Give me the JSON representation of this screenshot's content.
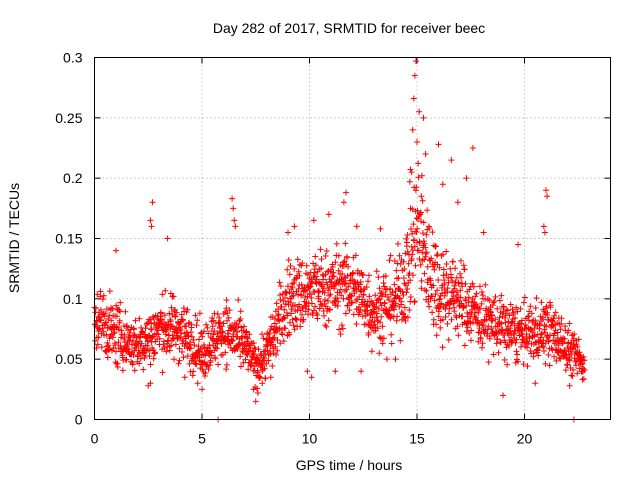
{
  "chart_data": {
    "type": "scatter",
    "title": "Day 282 of 2017, SRMTID for receiver beec",
    "xlabel": "GPS time / hours",
    "ylabel": "SRMTID / TECUs",
    "xlim": [
      0,
      24
    ],
    "ylim": [
      0,
      0.3
    ],
    "xticks": [
      0,
      5,
      10,
      15,
      20
    ],
    "xtick_labels": [
      "0",
      "5",
      "10",
      "15",
      "20"
    ],
    "yticks": [
      0,
      0.05,
      0.1,
      0.15,
      0.2,
      0.25,
      0.3
    ],
    "ytick_labels": [
      "0",
      "0.05",
      "0.1",
      "0.15",
      "0.2",
      "0.25",
      "0.3"
    ],
    "grid": true,
    "marker": "+",
    "color": "#ff0000",
    "series": [
      {
        "name": "SRMTID",
        "envelope_x": [
          0,
          1,
          2,
          3,
          4,
          5,
          6,
          7,
          7.5,
          8,
          9,
          10,
          11,
          12,
          13,
          14,
          14.5,
          15,
          15.5,
          16,
          17,
          18,
          19,
          20,
          21,
          22,
          22.8
        ],
        "envelope_y": [
          0.085,
          0.07,
          0.06,
          0.075,
          0.075,
          0.055,
          0.075,
          0.06,
          0.045,
          0.055,
          0.1,
          0.105,
          0.11,
          0.11,
          0.09,
          0.1,
          0.12,
          0.16,
          0.13,
          0.11,
          0.1,
          0.085,
          0.075,
          0.07,
          0.075,
          0.06,
          0.045
        ],
        "spread_y": [
          0.025,
          0.025,
          0.02,
          0.025,
          0.025,
          0.02,
          0.025,
          0.02,
          0.015,
          0.02,
          0.03,
          0.03,
          0.03,
          0.03,
          0.03,
          0.03,
          0.04,
          0.06,
          0.045,
          0.04,
          0.03,
          0.025,
          0.025,
          0.022,
          0.025,
          0.02,
          0.012
        ],
        "points": [
          [
            14.95,
            0.297
          ],
          [
            14.9,
            0.285
          ],
          [
            14.85,
            0.266
          ],
          [
            15.1,
            0.255
          ],
          [
            15.3,
            0.25
          ],
          [
            14.8,
            0.24
          ],
          [
            15.0,
            0.23
          ],
          [
            15.4,
            0.22
          ],
          [
            16.0,
            0.228
          ],
          [
            16.6,
            0.215
          ],
          [
            17.6,
            0.225
          ],
          [
            17.3,
            0.2
          ],
          [
            16.2,
            0.195
          ],
          [
            14.75,
            0.205
          ],
          [
            15.2,
            0.185
          ],
          [
            2.7,
            0.18
          ],
          [
            2.6,
            0.165
          ],
          [
            2.65,
            0.16
          ],
          [
            6.4,
            0.183
          ],
          [
            6.45,
            0.175
          ],
          [
            6.5,
            0.165
          ],
          [
            6.55,
            0.16
          ],
          [
            11.7,
            0.188
          ],
          [
            11.6,
            0.18
          ],
          [
            10.2,
            0.165
          ],
          [
            10.9,
            0.17
          ],
          [
            12.2,
            0.16
          ],
          [
            21.0,
            0.19
          ],
          [
            21.05,
            0.185
          ],
          [
            20.9,
            0.16
          ],
          [
            20.95,
            0.155
          ],
          [
            14.7,
            0.175
          ],
          [
            16.9,
            0.18
          ],
          [
            1.0,
            0.14
          ],
          [
            3.4,
            0.15
          ],
          [
            9.0,
            0.155
          ],
          [
            9.3,
            0.16
          ],
          [
            13.3,
            0.158
          ],
          [
            18.1,
            0.155
          ],
          [
            19.7,
            0.145
          ],
          [
            4.8,
            0.03
          ],
          [
            7.5,
            0.015
          ],
          [
            7.6,
            0.022
          ],
          [
            7.4,
            0.025
          ],
          [
            7.8,
            0.03
          ],
          [
            2.5,
            0.028
          ],
          [
            2.6,
            0.03
          ],
          [
            4.2,
            0.035
          ],
          [
            9.9,
            0.04
          ],
          [
            10.1,
            0.035
          ],
          [
            19.0,
            0.02
          ],
          [
            22.1,
            0.028
          ],
          [
            22.7,
            0.033
          ],
          [
            20.5,
            0.03
          ],
          [
            5.0,
            0.025
          ],
          [
            11.2,
            0.04
          ],
          [
            12.4,
            0.04
          ],
          [
            13.6,
            0.05
          ],
          [
            14.0,
            0.05
          ],
          [
            8.2,
            0.035
          ],
          [
            5.75,
            0.0
          ],
          [
            22.3,
            0.0
          ]
        ]
      }
    ]
  }
}
